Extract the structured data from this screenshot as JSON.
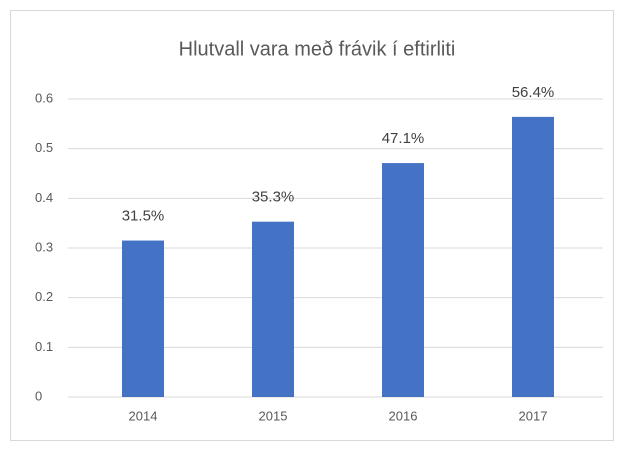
{
  "chart_data": {
    "type": "bar",
    "title": "Hlutvall vara með frávik í eftirliti",
    "categories": [
      "2014",
      "2015",
      "2016",
      "2017"
    ],
    "values": [
      0.315,
      0.353,
      0.471,
      0.564
    ],
    "value_labels": [
      "31.5%",
      "35.3%",
      "47.1%",
      "56.4%"
    ],
    "color": "#4472c4",
    "ylim": [
      0,
      0.6
    ],
    "yticks": [
      0,
      0.1,
      0.2,
      0.3,
      0.4,
      0.5,
      0.6
    ],
    "grid": true
  }
}
